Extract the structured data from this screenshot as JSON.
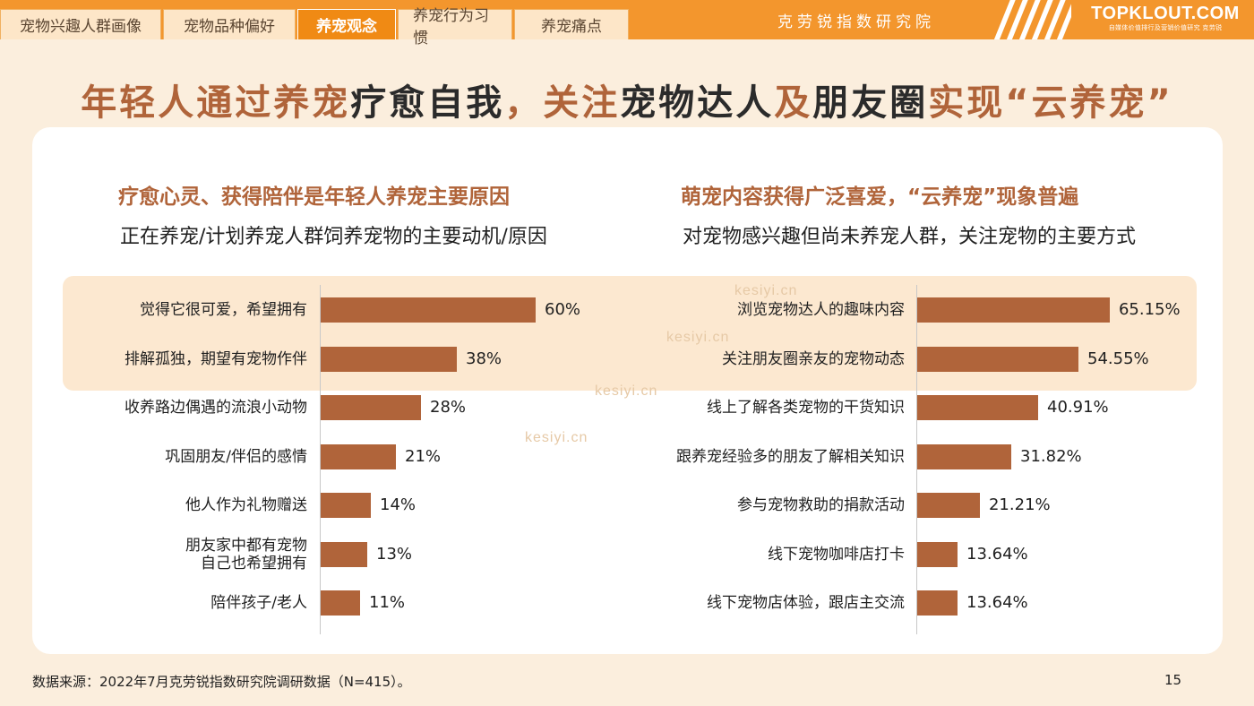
{
  "nav": {
    "tabs": [
      {
        "label": "宠物兴趣人群画像",
        "active": false
      },
      {
        "label": "宠物品种偏好",
        "active": false
      },
      {
        "label": "养宠观念",
        "active": true
      },
      {
        "label": "养宠行为习惯",
        "active": false
      },
      {
        "label": "养宠痛点",
        "active": false
      }
    ],
    "institute": "克劳锐指数研究院",
    "brand": "TOPKLOUT.COM",
    "brand_tagline": "自媒体价值排行及营销价值研究  克劳锐"
  },
  "headline": {
    "parts": [
      {
        "text": "年轻人通过养宠",
        "dark": false
      },
      {
        "text": "疗愈自我",
        "dark": true
      },
      {
        "text": "，关注",
        "dark": false
      },
      {
        "text": "宠物达人",
        "dark": true
      },
      {
        "text": "及",
        "dark": false
      },
      {
        "text": "朋友圈",
        "dark": true
      },
      {
        "text": "实现“云养宠”",
        "dark": false
      }
    ]
  },
  "left_panel": {
    "title": "疗愈心灵、获得陪伴是年轻人养宠主要原因",
    "subtitle": "正在养宠/计划养宠人群饲养宠物的主要动机/原因"
  },
  "right_panel": {
    "title": "萌宠内容获得广泛喜爱，“云养宠”现象普遍",
    "subtitle": "对宠物感兴趣但尚未养宠人群，关注宠物的主要方式"
  },
  "chart_data": [
    {
      "type": "bar",
      "orientation": "horizontal",
      "categories": [
        "觉得它很可爱，希望拥有",
        "排解孤独，期望有宠物作伴",
        "收养路边偶遇的流浪小动物",
        "巩固朋友/伴侣的感情",
        "他人作为礼物赠送",
        "朋友家中都有宠物\n自己也希望拥有",
        "陪伴孩子/老人"
      ],
      "values": [
        60,
        38,
        28,
        21,
        14,
        13,
        11
      ],
      "labels": [
        "60%",
        "38%",
        "28%",
        "21%",
        "14%",
        "13%",
        "11%"
      ],
      "xlim": [
        0,
        100
      ],
      "highlighted": [
        0,
        1
      ],
      "bar_color": "#b0643a"
    },
    {
      "type": "bar",
      "orientation": "horizontal",
      "categories": [
        "浏览宠物达人的趣味内容",
        "关注朋友圈亲友的宠物动态",
        "线上了解各类宠物的干货知识",
        "跟养宠经验多的朋友了解相关知识",
        "参与宠物救助的捐款活动",
        "线下宠物咖啡店打卡",
        "线下宠物店体验，跟店主交流"
      ],
      "values": [
        65.15,
        54.55,
        40.91,
        31.82,
        21.21,
        13.64,
        13.64
      ],
      "labels": [
        "65.15%",
        "54.55%",
        "40.91%",
        "31.82%",
        "21.21%",
        "13.64%",
        "13.64%"
      ],
      "xlim": [
        0,
        100
      ],
      "highlighted": [
        0,
        1
      ],
      "bar_color": "#b0643a"
    }
  ],
  "watermarks": [
    "kesiyi.cn",
    "kesiyi.cn",
    "kesiyi.cn",
    "kesiyi.cn"
  ],
  "footer": {
    "source": "数据来源：2022年7月克劳锐指数研究院调研数据（N=415）。",
    "page": "15"
  }
}
